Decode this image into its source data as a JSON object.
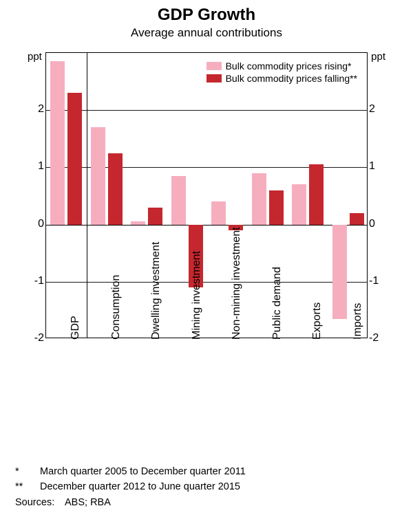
{
  "title": "GDP Growth",
  "subtitle": "Average annual contributions",
  "chart": {
    "type": "bar",
    "y_unit": "ppt",
    "ylim": [
      -2,
      3
    ],
    "ytick_step": 1,
    "yticks": [
      -2,
      -1,
      0,
      1,
      2
    ],
    "background_color": "#ffffff",
    "axis_color": "#000000",
    "gridline_color": "#000000",
    "bar_gap": 0.06,
    "bar_width": 0.36,
    "vline_after_index": 0,
    "categories": [
      "GDP",
      "Consumption",
      "Dwelling investment",
      "Mining investment",
      "Non-mining investment",
      "Public demand",
      "Exports",
      "Imports"
    ],
    "series": [
      {
        "name": "Bulk commodity prices rising*",
        "color": "#f6aebf",
        "values": [
          2.85,
          1.7,
          0.05,
          0.85,
          0.4,
          0.9,
          0.7,
          -1.65
        ]
      },
      {
        "name": "Bulk commodity prices falling**",
        "color": "#c5272e",
        "values": [
          2.3,
          1.25,
          0.3,
          -1.1,
          -0.1,
          0.6,
          1.05,
          0.2
        ]
      }
    ],
    "title_fontsize": 24,
    "subtitle_fontsize": 17,
    "tick_fontsize": 16,
    "legend_fontsize": 14,
    "x_label_fontsize": 16
  },
  "footnotes": [
    {
      "marker": "*",
      "text": "March quarter 2005 to December quarter 2011"
    },
    {
      "marker": "**",
      "text": "December quarter 2012 to June quarter 2015"
    }
  ],
  "sources_label": "Sources:",
  "sources": "ABS; RBA"
}
